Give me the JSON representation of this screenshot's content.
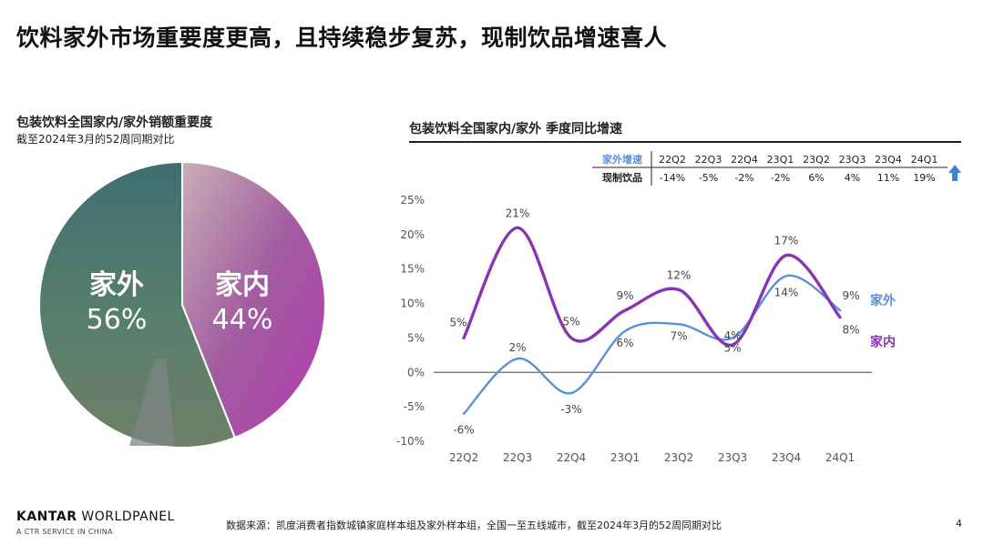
{
  "page": {
    "title": "饮料家外市场重要度更高，且持续稳步复苏，现制饮品增速喜人",
    "source": "数据来源：凯度消费者指数城镇家庭样本组及家外样本组，全国一至五线城市，截至2024年3月的52周同期对比",
    "page_number": "4",
    "logo_bold": "KANTAR",
    "logo_thin": " WORLDPANEL",
    "logo_tagline": "A CTR SERVICE IN CHINA"
  },
  "colors": {
    "home": "#8a34b5",
    "out_of_home": "#5b8fd6",
    "zero_line": "#666666",
    "pie_out_bg": "#4b7a7a",
    "pie_in_bg": "#b07aa0",
    "up_arrow": "#3b82d6"
  },
  "icons": {
    "up_arrow": "arrow-up-icon"
  },
  "chart_data": [
    {
      "type": "pie",
      "title": "包装饮料全国家内/家外销额重要度",
      "subtitle": "截至2024年3月的52周同期对比",
      "slices": [
        {
          "name": "家外",
          "value": 56,
          "label": "56%"
        },
        {
          "name": "家内",
          "value": 44,
          "label": "44%"
        }
      ]
    },
    {
      "type": "line",
      "title": "包装饮料全国家内/家外 季度同比增速",
      "categories": [
        "22Q2",
        "22Q3",
        "22Q4",
        "23Q1",
        "23Q2",
        "23Q3",
        "23Q4",
        "24Q1"
      ],
      "ylim": [
        -10,
        25
      ],
      "yticks": [
        -10,
        -5,
        0,
        5,
        10,
        15,
        20,
        25
      ],
      "ytick_labels": [
        "-10%",
        "-5%",
        "0%",
        "5%",
        "10%",
        "15%",
        "20%",
        "25%"
      ],
      "series": [
        {
          "name": "家外",
          "values": [
            -6,
            2,
            -3,
            6,
            7,
            5,
            14,
            9
          ],
          "labels": [
            "-6%",
            "2%",
            "-3%",
            "6%",
            "7%",
            "5%",
            "14%",
            "9%"
          ]
        },
        {
          "name": "家内",
          "values": [
            5,
            21,
            5,
            9,
            12,
            4,
            17,
            8
          ],
          "labels": [
            "5%",
            "21%",
            "5%",
            "9%",
            "12%",
            "4%",
            "17%",
            "8%"
          ]
        }
      ],
      "table": {
        "header_label": "家外增速",
        "row_label": "现制饮品",
        "periods": [
          "22Q2",
          "22Q3",
          "22Q4",
          "23Q1",
          "23Q2",
          "23Q3",
          "23Q4",
          "24Q1"
        ],
        "values": [
          "-14%",
          "-5%",
          "-2%",
          "-2%",
          "6%",
          "4%",
          "11%",
          "19%"
        ]
      }
    }
  ]
}
